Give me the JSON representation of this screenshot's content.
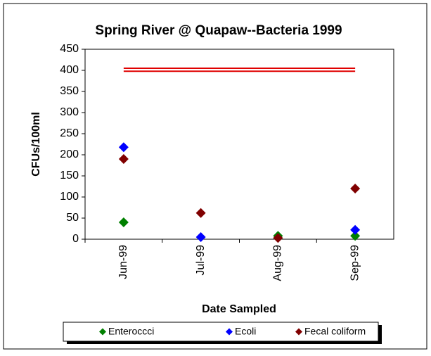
{
  "chart_data": {
    "type": "scatter",
    "title": "Spring River @ Quapaw--Bacteria 1999",
    "y_label": "CFUs/100ml",
    "x_label": "Date Sampled",
    "categories": [
      "Jun-99",
      "Jul-99",
      "Aug-99",
      "Sep-99"
    ],
    "series": [
      {
        "name": "Enteroccci",
        "color": "#008000",
        "values": [
          40,
          null,
          8,
          8
        ]
      },
      {
        "name": "Ecoli",
        "color": "#0000ff",
        "values": [
          218,
          5,
          null,
          22
        ]
      },
      {
        "name": "Fecal coliform",
        "color": "#800000",
        "values": [
          190,
          62,
          3,
          120
        ]
      }
    ],
    "reference_lines": [
      {
        "color": "#e00000",
        "value": 405
      },
      {
        "color": "#e00000",
        "value": 398
      }
    ],
    "ylim": [
      0,
      450
    ],
    "yticks": [
      0,
      50,
      100,
      150,
      200,
      250,
      300,
      350,
      400,
      450
    ],
    "legend": "bottom"
  }
}
